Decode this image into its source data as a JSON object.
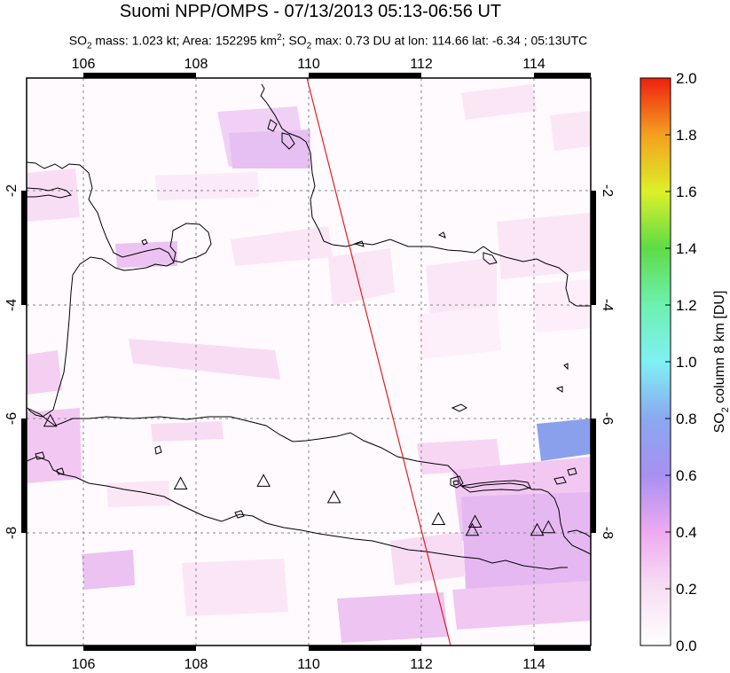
{
  "title": "Suomi NPP/OMPS - 07/13/2013 05:13-06:56 UT",
  "subtitle": {
    "part1": "SO",
    "sub1": "2",
    "part2": " mass: 1.023 kt; Area: 152295 km",
    "sup1": "2",
    "part3": "; SO",
    "sub2": "2",
    "part4": " max: 0.73 DU at lon: 114.66 lat: -6.34 ; 05:13UTC"
  },
  "map": {
    "lon_ticks": [
      "106",
      "108",
      "110",
      "112",
      "114"
    ],
    "lat_ticks": [
      "-2",
      "-4",
      "-6",
      "-8"
    ],
    "lon_range": [
      105,
      115
    ],
    "lat_range": [
      -10.2,
      0.2
    ]
  },
  "colorbar": {
    "ticks": [
      "0.0",
      "0.2",
      "0.4",
      "0.6",
      "0.8",
      "1.0",
      "1.2",
      "1.4",
      "1.6",
      "1.8",
      "2.0"
    ],
    "label_pre": "SO",
    "label_sub": "2",
    "label_post": " column 8 km [DU]"
  },
  "volcanoes": [
    {
      "name": "triangle-1",
      "lon": 105.42,
      "lat": -6.1
    },
    {
      "name": "triangle-2",
      "lon": 107.73,
      "lat": -7.25
    },
    {
      "name": "triangle-3",
      "lon": 109.2,
      "lat": -7.2
    },
    {
      "name": "triangle-4",
      "lon": 110.45,
      "lat": -7.5
    },
    {
      "name": "triangle-5",
      "lon": 112.3,
      "lat": -7.9
    },
    {
      "name": "triangle-6",
      "lon": 112.95,
      "lat": -7.95
    },
    {
      "name": "triangle-7",
      "lon": 112.9,
      "lat": -8.1
    },
    {
      "name": "triangle-8",
      "lon": 114.05,
      "lat": -8.1
    },
    {
      "name": "triangle-9",
      "lon": 114.25,
      "lat": -8.05
    }
  ]
}
